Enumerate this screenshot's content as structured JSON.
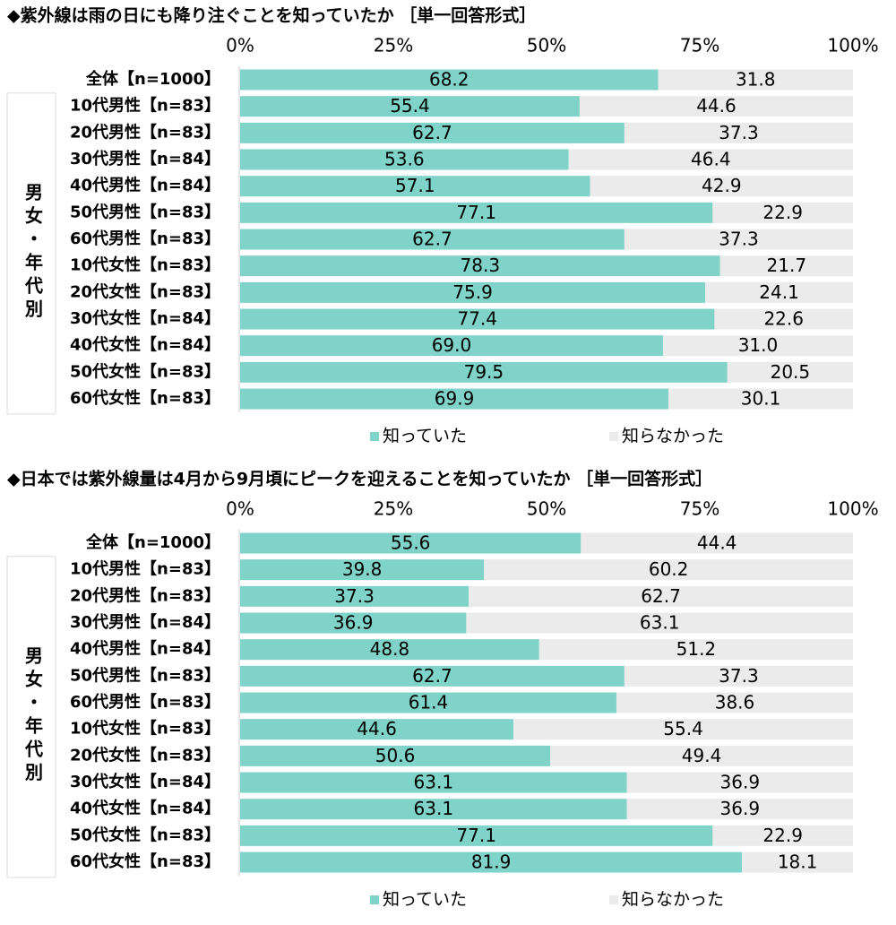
{
  "chart_data": [
    {
      "type": "stacked-bar",
      "title": "◆紫外線は雨の日にも降り注ぐことを知っていたか ［単一回答形式］",
      "group_label": "男女・年代別",
      "categories": [
        "全体【n=1000】",
        "10代男性【n=83】",
        "20代男性【n=83】",
        "30代男性【n=84】",
        "40代男性【n=84】",
        "50代男性【n=83】",
        "60代男性【n=83】",
        "10代女性【n=83】",
        "20代女性【n=83】",
        "30代女性【n=84】",
        "40代女性【n=84】",
        "50代女性【n=83】",
        "60代女性【n=83】"
      ],
      "series": [
        {
          "name": "知っていた",
          "color": "#7fd3c9",
          "values": [
            68.2,
            55.4,
            62.7,
            53.6,
            57.1,
            77.1,
            62.7,
            78.3,
            75.9,
            77.4,
            69.0,
            79.5,
            69.9
          ],
          "value_labels": [
            "68.2",
            "55.4",
            "62.7",
            "53.6",
            "57.1",
            "77.1",
            "62.7",
            "78.3",
            "75.9",
            "77.4",
            "69.0",
            "79.5",
            "69.9"
          ]
        },
        {
          "name": "知らなかった",
          "color": "#ebebeb",
          "values": [
            31.8,
            44.6,
            37.3,
            46.4,
            42.9,
            22.9,
            37.3,
            21.7,
            24.1,
            22.6,
            31.0,
            20.5,
            30.1
          ],
          "value_labels": [
            "31.8",
            "44.6",
            "37.3",
            "46.4",
            "42.9",
            "22.9",
            "37.3",
            "21.7",
            "24.1",
            "22.6",
            "31.0",
            "20.5",
            "30.1"
          ]
        }
      ],
      "xlim": [
        0,
        100
      ],
      "xticks": [
        {
          "value": 0,
          "label": "0%"
        },
        {
          "value": 25,
          "label": "25%"
        },
        {
          "value": 50,
          "label": "50%"
        },
        {
          "value": 75,
          "label": "75%"
        },
        {
          "value": 100,
          "label": "100%"
        }
      ]
    },
    {
      "type": "stacked-bar",
      "title": "◆日本では紫外線量は4月から9月頃にピークを迎えることを知っていたか ［単一回答形式］",
      "group_label": "男女・年代別",
      "categories": [
        "全体【n=1000】",
        "10代男性【n=83】",
        "20代男性【n=83】",
        "30代男性【n=84】",
        "40代男性【n=84】",
        "50代男性【n=83】",
        "60代男性【n=83】",
        "10代女性【n=83】",
        "20代女性【n=83】",
        "30代女性【n=84】",
        "40代女性【n=84】",
        "50代女性【n=83】",
        "60代女性【n=83】"
      ],
      "series": [
        {
          "name": "知っていた",
          "color": "#7fd3c9",
          "values": [
            55.6,
            39.8,
            37.3,
            36.9,
            48.8,
            62.7,
            61.4,
            44.6,
            50.6,
            63.1,
            63.1,
            77.1,
            81.9
          ],
          "value_labels": [
            "55.6",
            "39.8",
            "37.3",
            "36.9",
            "48.8",
            "62.7",
            "61.4",
            "44.6",
            "50.6",
            "63.1",
            "63.1",
            "77.1",
            "81.9"
          ]
        },
        {
          "name": "知らなかった",
          "color": "#ebebeb",
          "values": [
            44.4,
            60.2,
            62.7,
            63.1,
            51.2,
            37.3,
            38.6,
            55.4,
            49.4,
            36.9,
            36.9,
            22.9,
            18.1
          ],
          "value_labels": [
            "44.4",
            "60.2",
            "62.7",
            "63.1",
            "51.2",
            "37.3",
            "38.6",
            "55.4",
            "49.4",
            "36.9",
            "36.9",
            "22.9",
            "18.1"
          ]
        }
      ],
      "xlim": [
        0,
        100
      ],
      "xticks": [
        {
          "value": 0,
          "label": "0%"
        },
        {
          "value": 25,
          "label": "25%"
        },
        {
          "value": 50,
          "label": "50%"
        },
        {
          "value": 75,
          "label": "75%"
        },
        {
          "value": 100,
          "label": "100%"
        }
      ]
    }
  ]
}
